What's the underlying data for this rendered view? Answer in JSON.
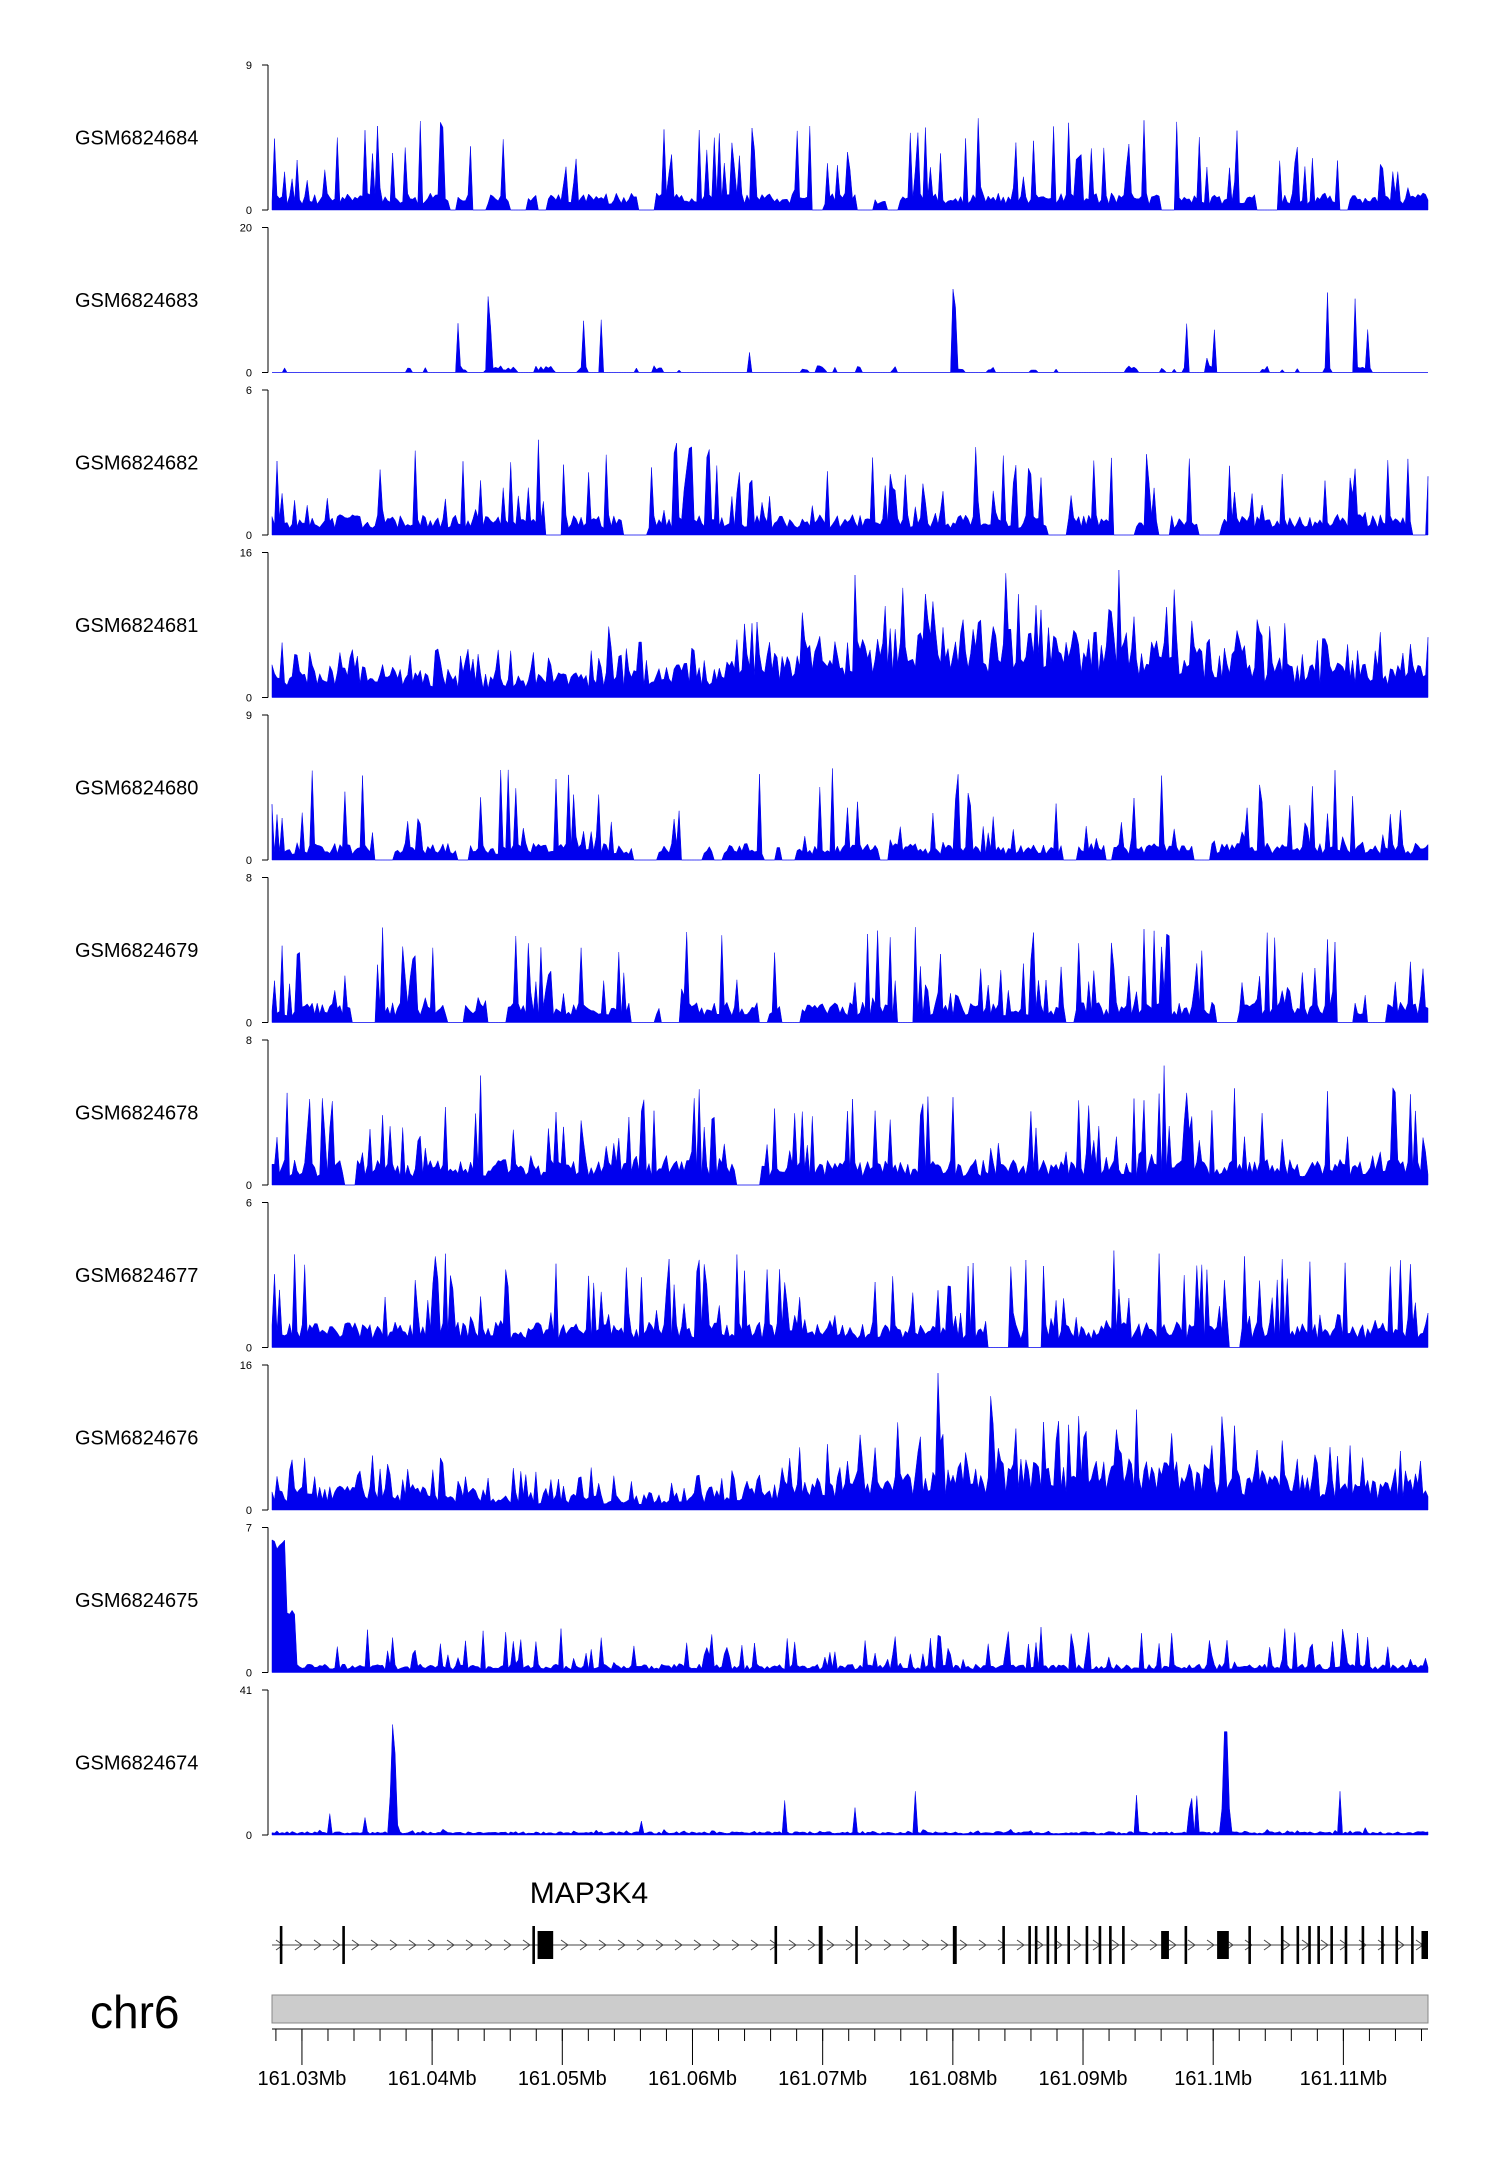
{
  "chart_data": {
    "type": "area",
    "tracks": [
      {
        "name": "GSM6824684",
        "ymax": 9,
        "ymin": 0,
        "ymax_label": "9",
        "ymin_label": "0"
      },
      {
        "name": "GSM6824683",
        "ymax": 20,
        "ymin": 0,
        "ymax_label": "20",
        "ymin_label": "0"
      },
      {
        "name": "GSM6824682",
        "ymax": 6,
        "ymin": 0,
        "ymax_label": "6",
        "ymin_label": "0"
      },
      {
        "name": "GSM6824681",
        "ymax": 16,
        "ymin": 0,
        "ymax_label": "16",
        "ymin_label": "0"
      },
      {
        "name": "GSM6824680",
        "ymax": 9,
        "ymin": 0,
        "ymax_label": "9",
        "ymin_label": "0"
      },
      {
        "name": "GSM6824679",
        "ymax": 8,
        "ymin": 0,
        "ymax_label": "8",
        "ymin_label": "0"
      },
      {
        "name": "GSM6824678",
        "ymax": 8,
        "ymin": 0,
        "ymax_label": "8",
        "ymin_label": "0"
      },
      {
        "name": "GSM6824677",
        "ymax": 6,
        "ymin": 0,
        "ymax_label": "6",
        "ymin_label": "0"
      },
      {
        "name": "GSM6824676",
        "ymax": 16,
        "ymin": 0,
        "ymax_label": "16",
        "ymin_label": "0"
      },
      {
        "name": "GSM6824675",
        "ymax": 7,
        "ymin": 0,
        "ymax_label": "7",
        "ymin_label": "0"
      },
      {
        "name": "GSM6824674",
        "ymax": 41,
        "ymin": 0,
        "ymax_label": "41",
        "ymin_label": "0"
      }
    ],
    "gene": {
      "name": "MAP3K4",
      "strand": "+",
      "start_mb": 161.0277,
      "end_mb": 161.1165,
      "exons_mb": [
        [
          161.0283,
          161.0285
        ],
        [
          161.0331,
          161.0333
        ],
        [
          161.0477,
          161.0479
        ],
        [
          161.0481,
          161.0493
        ],
        [
          161.0663,
          161.0665
        ],
        [
          161.0697,
          161.07
        ],
        [
          161.0725,
          161.0727
        ],
        [
          161.08,
          161.0803
        ],
        [
          161.0838,
          161.084
        ],
        [
          161.0858,
          161.086
        ],
        [
          161.0863,
          161.0865
        ],
        [
          161.0872,
          161.0874
        ],
        [
          161.0878,
          161.088
        ],
        [
          161.0888,
          161.089
        ],
        [
          161.0902,
          161.0904
        ],
        [
          161.0912,
          161.0914
        ],
        [
          161.092,
          161.0922
        ],
        [
          161.093,
          161.0932
        ],
        [
          161.096,
          161.0966
        ],
        [
          161.0978,
          161.098
        ],
        [
          161.1003,
          161.1012
        ],
        [
          161.1027,
          161.1029
        ],
        [
          161.1052,
          161.1054
        ],
        [
          161.1064,
          161.1066
        ],
        [
          161.1073,
          161.1075
        ],
        [
          161.108,
          161.1082
        ],
        [
          161.109,
          161.1092
        ],
        [
          161.1101,
          161.1103
        ],
        [
          161.1114,
          161.1116
        ],
        [
          161.1129,
          161.1131
        ],
        [
          161.114,
          161.1142
        ],
        [
          161.1152,
          161.1154
        ],
        [
          161.116,
          161.1165
        ]
      ]
    },
    "chromosome": "chr6",
    "x_range_mb": [
      161.0277,
      161.1165
    ],
    "x_ticks_mb": [
      161.03,
      161.04,
      161.05,
      161.06,
      161.07,
      161.08,
      161.09,
      161.1,
      161.11
    ],
    "x_tick_labels": [
      "161.03Mb",
      "161.04Mb",
      "161.05Mb",
      "161.06Mb",
      "161.07Mb",
      "161.08Mb",
      "161.09Mb",
      "161.1Mb",
      "161.11Mb"
    ],
    "x_minor_step_mb": 0.002,
    "colors": {
      "signal": "#0000ee",
      "axis": "#000000",
      "ideogram": "#cccccc",
      "ideogram_border": "#888888"
    },
    "grid": false,
    "legend": "none"
  }
}
